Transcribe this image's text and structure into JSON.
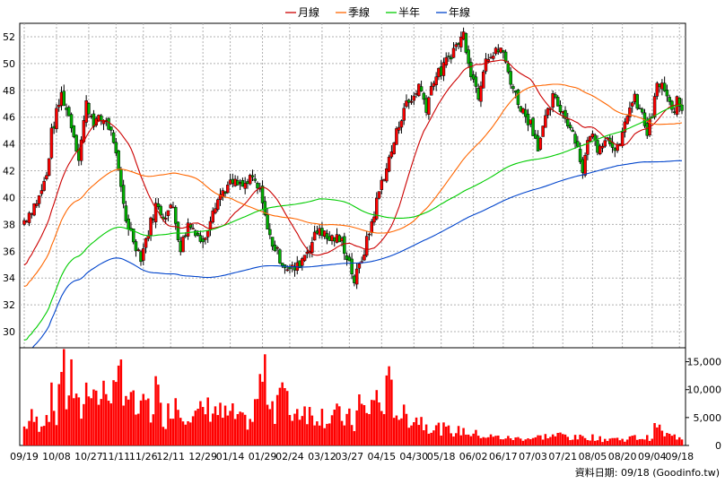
{
  "chart_data": {
    "type": "candlestick",
    "legend": [
      {
        "name": "月線",
        "color": "#cc0000"
      },
      {
        "name": "季線",
        "color": "#ff6600"
      },
      {
        "name": "半年",
        "color": "#00cc00"
      },
      {
        "name": "年線",
        "color": "#0044cc"
      }
    ],
    "price_axis": {
      "min": 28.8,
      "max": 53,
      "ticks": [
        30,
        32,
        34,
        36,
        38,
        40,
        42,
        44,
        46,
        48,
        50,
        52
      ]
    },
    "volume_axis": {
      "min": 0,
      "max": 17500,
      "ticks": [
        0,
        5000,
        10000,
        15000
      ],
      "tick_labels": [
        "0",
        "5,000",
        "10,000",
        "15,000"
      ]
    },
    "x_labels": [
      {
        "i": 0,
        "t": "09/19"
      },
      {
        "i": 13,
        "t": "10/08"
      },
      {
        "i": 26,
        "t": "10/27"
      },
      {
        "i": 37,
        "t": "11/11"
      },
      {
        "i": 48,
        "t": "11/26"
      },
      {
        "i": 59,
        "t": "12/11"
      },
      {
        "i": 72,
        "t": "12/29"
      },
      {
        "i": 83,
        "t": "01/14"
      },
      {
        "i": 96,
        "t": "01/29"
      },
      {
        "i": 107,
        "t": "02/24"
      },
      {
        "i": 120,
        "t": "03/12"
      },
      {
        "i": 131,
        "t": "03/27"
      },
      {
        "i": 144,
        "t": "04/15"
      },
      {
        "i": 157,
        "t": "04/30"
      },
      {
        "i": 168,
        "t": "05/18"
      },
      {
        "i": 181,
        "t": "06/02"
      },
      {
        "i": 193,
        "t": "06/17"
      },
      {
        "i": 205,
        "t": "07/03"
      },
      {
        "i": 217,
        "t": "07/21"
      },
      {
        "i": 229,
        "t": "08/05"
      },
      {
        "i": 241,
        "t": "08/20"
      },
      {
        "i": 253,
        "t": "09/04"
      },
      {
        "i": 264,
        "t": "09/18"
      }
    ],
    "n_points": 266,
    "close_keyframes": [
      [
        0,
        38.3
      ],
      [
        3,
        39.2
      ],
      [
        6,
        40
      ],
      [
        9,
        41.6
      ],
      [
        11,
        44.8
      ],
      [
        15,
        47.7
      ],
      [
        19,
        45.5
      ],
      [
        22,
        43
      ],
      [
        25,
        47
      ],
      [
        28,
        45.7
      ],
      [
        33,
        45.8
      ],
      [
        36,
        44.3
      ],
      [
        38,
        41.7
      ],
      [
        41,
        38.4
      ],
      [
        44,
        36.9
      ],
      [
        47,
        35.6
      ],
      [
        50,
        37.5
      ],
      [
        53,
        39.4
      ],
      [
        56,
        38.7
      ],
      [
        60,
        39.3
      ],
      [
        63,
        36.2
      ],
      [
        66,
        38
      ],
      [
        69,
        37.6
      ],
      [
        72,
        36.5
      ],
      [
        76,
        39.3
      ],
      [
        80,
        40.5
      ],
      [
        84,
        41.1
      ],
      [
        88,
        40.8
      ],
      [
        92,
        41.4
      ],
      [
        96,
        40
      ],
      [
        98,
        37.5
      ],
      [
        101,
        36.2
      ],
      [
        104,
        35.2
      ],
      [
        107,
        34.6
      ],
      [
        110,
        34.8
      ],
      [
        113,
        35.8
      ],
      [
        116,
        36.7
      ],
      [
        119,
        37.8
      ],
      [
        122,
        36.9
      ],
      [
        125,
        37
      ],
      [
        128,
        36.7
      ],
      [
        131,
        35.2
      ],
      [
        133,
        33.8
      ],
      [
        135,
        34.8
      ],
      [
        138,
        36.7
      ],
      [
        141,
        38.9
      ],
      [
        144,
        41.2
      ],
      [
        147,
        42.8
      ],
      [
        150,
        44.8
      ],
      [
        153,
        46.8
      ],
      [
        156,
        47.2
      ],
      [
        159,
        48.4
      ],
      [
        162,
        46.8
      ],
      [
        165,
        48.9
      ],
      [
        168,
        49.4
      ],
      [
        171,
        50.5
      ],
      [
        174,
        51.3
      ],
      [
        177,
        52.2
      ],
      [
        180,
        49.4
      ],
      [
        183,
        47.7
      ],
      [
        186,
        50.7
      ],
      [
        189,
        50.6
      ],
      [
        192,
        51.2
      ],
      [
        195,
        49.4
      ],
      [
        198,
        47.6
      ],
      [
        201,
        46.4
      ],
      [
        204,
        45.6
      ],
      [
        207,
        43.9
      ],
      [
        210,
        45.7
      ],
      [
        213,
        47.4
      ],
      [
        216,
        46.7
      ],
      [
        219,
        45.7
      ],
      [
        222,
        44.5
      ],
      [
        225,
        42.1
      ],
      [
        228,
        44.9
      ],
      [
        231,
        43.8
      ],
      [
        234,
        44.5
      ],
      [
        237,
        44.1
      ],
      [
        240,
        43.6
      ],
      [
        243,
        46.4
      ],
      [
        246,
        47.3
      ],
      [
        249,
        46.1
      ],
      [
        251,
        44.8
      ],
      [
        253,
        46.2
      ],
      [
        255,
        48.3
      ],
      [
        257,
        48.5
      ],
      [
        259,
        47.3
      ],
      [
        261,
        46.4
      ],
      [
        263,
        47.1
      ],
      [
        265,
        46.6
      ]
    ],
    "volume_keyframes": [
      [
        0,
        3400
      ],
      [
        3,
        5200
      ],
      [
        6,
        4000
      ],
      [
        9,
        5800
      ],
      [
        11,
        8500
      ],
      [
        13,
        5200
      ],
      [
        15,
        17000
      ],
      [
        17,
        8800
      ],
      [
        19,
        13200
      ],
      [
        21,
        7200
      ],
      [
        23,
        6500
      ],
      [
        25,
        10500
      ],
      [
        27,
        13600
      ],
      [
        29,
        9200
      ],
      [
        31,
        8800
      ],
      [
        33,
        10200
      ],
      [
        35,
        11500
      ],
      [
        37,
        8600
      ],
      [
        39,
        14500
      ],
      [
        41,
        10600
      ],
      [
        43,
        8400
      ],
      [
        45,
        6600
      ],
      [
        47,
        6000
      ],
      [
        49,
        8800
      ],
      [
        51,
        5400
      ],
      [
        53,
        11200
      ],
      [
        55,
        6300
      ],
      [
        57,
        5200
      ],
      [
        59,
        7200
      ],
      [
        61,
        9000
      ],
      [
        63,
        6300
      ],
      [
        66,
        7000
      ],
      [
        69,
        5400
      ],
      [
        72,
        6500
      ],
      [
        76,
        7200
      ],
      [
        80,
        5600
      ],
      [
        84,
        5700
      ],
      [
        88,
        4400
      ],
      [
        92,
        4900
      ],
      [
        96,
        13500
      ],
      [
        99,
        9500
      ],
      [
        101,
        6800
      ],
      [
        103,
        12000
      ],
      [
        105,
        9000
      ],
      [
        107,
        6300
      ],
      [
        110,
        6500
      ],
      [
        113,
        7300
      ],
      [
        116,
        5400
      ],
      [
        119,
        6200
      ],
      [
        122,
        5000
      ],
      [
        125,
        6100
      ],
      [
        128,
        5000
      ],
      [
        131,
        5000
      ],
      [
        133,
        3800
      ],
      [
        135,
        8200
      ],
      [
        138,
        5600
      ],
      [
        141,
        9400
      ],
      [
        144,
        7200
      ],
      [
        147,
        11000
      ],
      [
        150,
        6500
      ],
      [
        153,
        5500
      ],
      [
        156,
        5300
      ],
      [
        159,
        5100
      ],
      [
        162,
        4000
      ],
      [
        165,
        3400
      ],
      [
        168,
        3200
      ],
      [
        171,
        2800
      ],
      [
        174,
        2600
      ],
      [
        177,
        2800
      ],
      [
        180,
        2200
      ],
      [
        183,
        2100
      ],
      [
        186,
        1700
      ],
      [
        190,
        1600
      ],
      [
        194,
        1400
      ],
      [
        198,
        1300
      ],
      [
        202,
        1400
      ],
      [
        205,
        1400
      ],
      [
        209,
        1700
      ],
      [
        213,
        1800
      ],
      [
        217,
        2000
      ],
      [
        221,
        1400
      ],
      [
        225,
        1500
      ],
      [
        229,
        1600
      ],
      [
        233,
        1100
      ],
      [
        237,
        1400
      ],
      [
        241,
        1100
      ],
      [
        245,
        1500
      ],
      [
        249,
        1400
      ],
      [
        253,
        1500
      ],
      [
        255,
        4500
      ],
      [
        257,
        2200
      ],
      [
        261,
        1700
      ],
      [
        265,
        1600
      ]
    ]
  },
  "footer": {
    "text": "資料日期: 09/18  (Goodinfo.tw)"
  }
}
